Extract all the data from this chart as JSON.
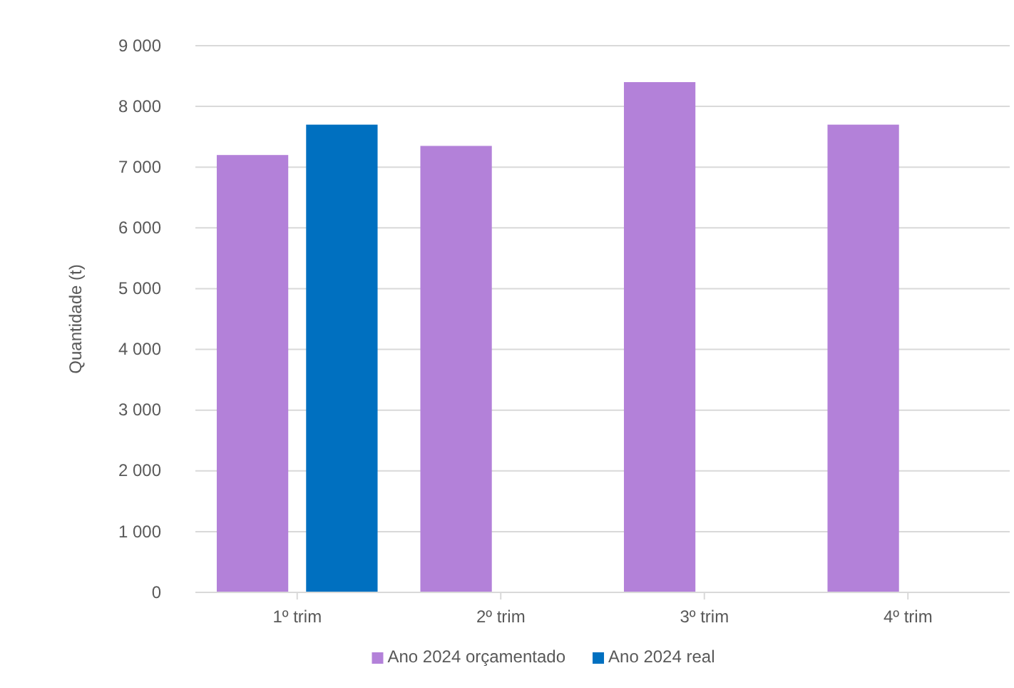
{
  "chart_data": {
    "type": "bar",
    "ylabel": "Quantidade (t)",
    "categories": [
      "1º trim",
      "2º trim",
      "3º trim",
      "4º trim"
    ],
    "series": [
      {
        "name": "Ano 2024 orçamentado",
        "color": "#b381d9",
        "values": [
          7200,
          7350,
          8400,
          7700
        ]
      },
      {
        "name": "Ano 2024 real",
        "color": "#0070c0",
        "values": [
          7700,
          null,
          null,
          null
        ]
      }
    ],
    "ylim": [
      0,
      9000
    ],
    "yticks": [
      {
        "value": 0,
        "label": "0"
      },
      {
        "value": 1000,
        "label": "1 000"
      },
      {
        "value": 2000,
        "label": "2 000"
      },
      {
        "value": 3000,
        "label": "3 000"
      },
      {
        "value": 4000,
        "label": "4 000"
      },
      {
        "value": 5000,
        "label": "5 000"
      },
      {
        "value": 6000,
        "label": "6 000"
      },
      {
        "value": 7000,
        "label": "7 000"
      },
      {
        "value": 8000,
        "label": "8 000"
      },
      {
        "value": 9000,
        "label": "9 000"
      }
    ],
    "grid": "y",
    "legend": "bottom"
  }
}
